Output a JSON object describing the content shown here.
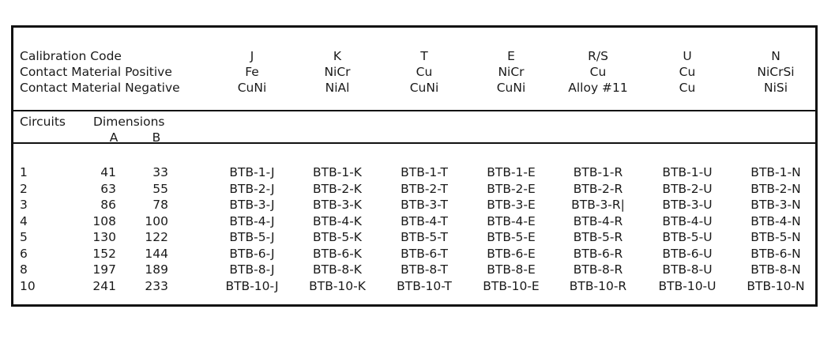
{
  "header": {
    "row_labels": [
      "Calibration Code",
      "Contact Material Positive",
      "Contact Material Negative"
    ],
    "columns": [
      {
        "code": "J",
        "positive": "Fe",
        "negative": "CuNi"
      },
      {
        "code": "K",
        "positive": "NiCr",
        "negative": "NiAl"
      },
      {
        "code": "T",
        "positive": "Cu",
        "negative": "CuNi"
      },
      {
        "code": "E",
        "positive": "NiCr",
        "negative": "CuNi"
      },
      {
        "code": "R/S",
        "positive": "Cu",
        "negative": "Alloy #11"
      },
      {
        "code": "U",
        "positive": "Cu",
        "negative": "Cu"
      },
      {
        "code": "N",
        "positive": "NiCrSi",
        "negative": "NiSi"
      }
    ]
  },
  "subheader": {
    "circuits": "Circuits",
    "dimensions": "Dimensions",
    "dim_a": "A",
    "dim_b": "B"
  },
  "rows": [
    {
      "circuits": "1",
      "a": "41",
      "b": "33",
      "parts": [
        "BTB-1-J",
        "BTB-1-K",
        "BTB-1-T",
        "BTB-1-E",
        "BTB-1-R",
        "BTB-1-U",
        "BTB-1-N"
      ]
    },
    {
      "circuits": "2",
      "a": "63",
      "b": "55",
      "parts": [
        "BTB-2-J",
        "BTB-2-K",
        "BTB-2-T",
        "BTB-2-E",
        "BTB-2-R",
        "BTB-2-U",
        "BTB-2-N"
      ]
    },
    {
      "circuits": "3",
      "a": "86",
      "b": "78",
      "parts": [
        "BTB-3-J",
        "BTB-3-K",
        "BTB-3-T",
        "BTB-3-E",
        "BTB-3-R|",
        "BTB-3-U",
        "BTB-3-N"
      ]
    },
    {
      "circuits": "4",
      "a": "108",
      "b": "100",
      "parts": [
        "BTB-4-J",
        "BTB-4-K",
        "BTB-4-T",
        "BTB-4-E",
        "BTB-4-R",
        "BTB-4-U",
        "BTB-4-N"
      ]
    },
    {
      "circuits": "5",
      "a": "130",
      "b": "122",
      "parts": [
        "BTB-5-J",
        "BTB-5-K",
        "BTB-5-T",
        "BTB-5-E",
        "BTB-5-R",
        "BTB-5-U",
        "BTB-5-N"
      ]
    },
    {
      "circuits": "6",
      "a": "152",
      "b": "144",
      "parts": [
        "BTB-6-J",
        "BTB-6-K",
        "BTB-6-T",
        "BTB-6-E",
        "BTB-6-R",
        "BTB-6-U",
        "BTB-6-N"
      ]
    },
    {
      "circuits": "8",
      "a": "197",
      "b": "189",
      "parts": [
        "BTB-8-J",
        "BTB-8-K",
        "BTB-8-T",
        "BTB-8-E",
        "BTB-8-R",
        "BTB-8-U",
        "BTB-8-N"
      ]
    },
    {
      "circuits": "10",
      "a": "241",
      "b": "233",
      "parts": [
        "BTB-10-J",
        "BTB-10-K",
        "BTB-10-T",
        "BTB-10-E",
        "BTB-10-R",
        "BTB-10-U",
        "BTB-10-N"
      ]
    }
  ]
}
